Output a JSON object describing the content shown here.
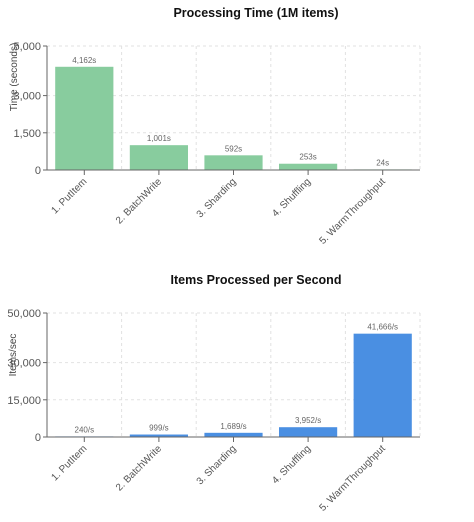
{
  "chart_data": [
    {
      "type": "bar",
      "title": "Processing Time (1M items)",
      "xlabel": "",
      "ylabel": "Time (seconds)",
      "categories": [
        "1. PutItem",
        "2. BatchWrite",
        "3. Sharding",
        "4. Shuffling",
        "5. WarmThroughput"
      ],
      "values": [
        4162,
        1001,
        592,
        253,
        24
      ],
      "data_labels": [
        "4,162s",
        "1,001s",
        "592s",
        "253s",
        "24s"
      ],
      "ylim": [
        0,
        5000
      ],
      "yticks": [
        0,
        1500,
        3000,
        5000
      ],
      "ytick_labels": [
        "0",
        "1,500",
        "3,000",
        "5,000"
      ],
      "grid": true,
      "legend": "none",
      "color": "#88cc9e"
    },
    {
      "type": "bar",
      "title": "Items Processed per Second",
      "xlabel": "",
      "ylabel": "Items/sec",
      "categories": [
        "1. PutItem",
        "2. BatchWrite",
        "3. Sharding",
        "4. Shuffling",
        "5. WarmThroughput"
      ],
      "values": [
        240,
        999,
        1689,
        3952,
        41666
      ],
      "data_labels": [
        "240/s",
        "999/s",
        "1,689/s",
        "3,952/s",
        "41,666/s"
      ],
      "ylim": [
        0,
        50000
      ],
      "yticks": [
        0,
        15000,
        30000,
        50000
      ],
      "ytick_labels": [
        "0",
        "15,000",
        "30,000",
        "50,000"
      ],
      "grid": true,
      "legend": "none",
      "color": "#4a8fe2"
    }
  ]
}
